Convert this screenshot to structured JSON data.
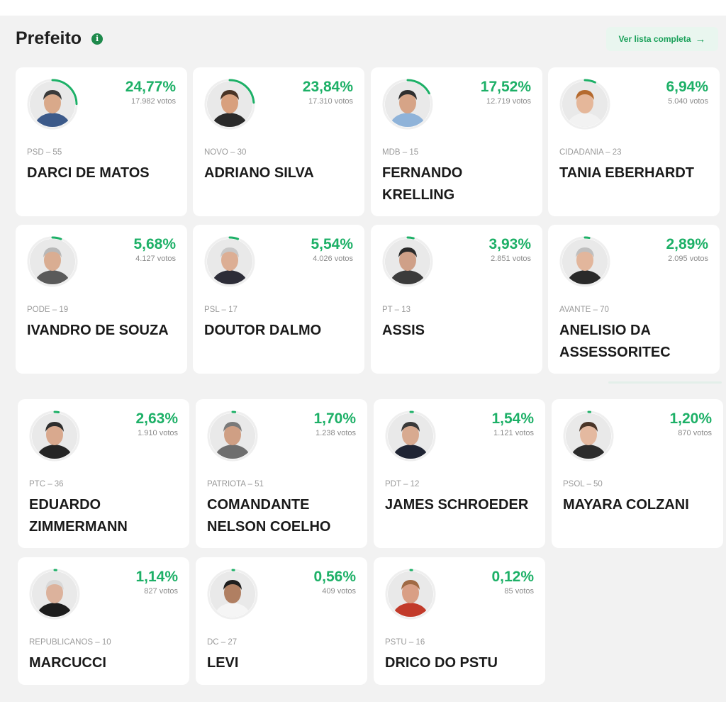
{
  "header": {
    "title": "Prefeito",
    "info_icon": "info-icon"
  },
  "ver_lista": {
    "label": "Ver lista completa",
    "icon": "arrow-right-icon",
    "arrow": "→"
  },
  "colors": {
    "accent": "#1db067",
    "ring": "#1db067",
    "panel": "#f2f2f2"
  },
  "candidates": [
    {
      "party": "PSD – 55",
      "name": "DARCI DE MATOS",
      "pct": "24,77%",
      "pct_value": 24.77,
      "votes": "17.982 votos",
      "skin": "#d9a98a",
      "hair": "#3a3a3a",
      "shirt": "#3c5a8a"
    },
    {
      "party": "NOVO – 30",
      "name": "ADRIANO SILVA",
      "pct": "23,84%",
      "pct_value": 23.84,
      "votes": "17.310 votos",
      "skin": "#d8a07e",
      "hair": "#4a3426",
      "shirt": "#2a2a2a"
    },
    {
      "party": "MDB – 15",
      "name": "FERNANDO KRELLING",
      "pct": "17,52%",
      "pct_value": 17.52,
      "votes": "12.719 votos",
      "skin": "#d6a487",
      "hair": "#2f2f2f",
      "shirt": "#8fb3d9"
    },
    {
      "party": "CIDADANIA – 23",
      "name": "TANIA EBERHARDT",
      "pct": "6,94%",
      "pct_value": 6.94,
      "votes": "5.040 votos",
      "skin": "#e5b79a",
      "hair": "#b56a2e",
      "shirt": "#f2f2f2"
    },
    {
      "party": "PODE – 19",
      "name": "IVANDRO DE SOUZA",
      "pct": "5,68%",
      "pct_value": 5.68,
      "votes": "4.127 votos",
      "skin": "#d9ad92",
      "hair": "#b8b8b8",
      "shirt": "#5a5a5a"
    },
    {
      "party": "PSL – 17",
      "name": "DOUTOR DALMO",
      "pct": "5,54%",
      "pct_value": 5.54,
      "votes": "4.026 votos",
      "skin": "#dcae94",
      "hair": "#c8c8c8",
      "shirt": "#2d2d38"
    },
    {
      "party": "PT – 13",
      "name": "ASSIS",
      "pct": "3,93%",
      "pct_value": 3.93,
      "votes": "2.851 votos",
      "skin": "#cfa088",
      "hair": "#2b2b2b",
      "shirt": "#3b3b3b"
    },
    {
      "party": "AVANTE – 70",
      "name": "ANELISIO DA ASSESSORITEC",
      "pct": "2,89%",
      "pct_value": 2.89,
      "votes": "2.095 votos",
      "skin": "#e2b69c",
      "hair": "#bfbfbf",
      "shirt": "#2a2a2a"
    },
    {
      "party": "PTC – 36",
      "name": "EDUARDO ZIMMERMANN",
      "pct": "2,63%",
      "pct_value": 2.63,
      "votes": "1.910 votos",
      "skin": "#d9a98e",
      "hair": "#2e2e2e",
      "shirt": "#252525"
    },
    {
      "party": "PATRIOTA – 51",
      "name": "COMANDANTE NELSON COELHO",
      "pct": "1,70%",
      "pct_value": 1.7,
      "votes": "1.238 votos",
      "skin": "#cf9f84",
      "hair": "#7a7a7a",
      "shirt": "#6e6e6e"
    },
    {
      "party": "PDT – 12",
      "name": "JAMES SCHROEDER",
      "pct": "1,54%",
      "pct_value": 1.54,
      "votes": "1.121 votos",
      "skin": "#d8aa90",
      "hair": "#3a3a3a",
      "shirt": "#1f2433"
    },
    {
      "party": "PSOL – 50",
      "name": "MAYARA COLZANI",
      "pct": "1,20%",
      "pct_value": 1.2,
      "votes": "870 votos",
      "skin": "#e4b9a0",
      "hair": "#4a3528",
      "shirt": "#2c2c2c"
    },
    {
      "party": "REPUBLICANOS – 10",
      "name": "MARCUCCI",
      "pct": "1,14%",
      "pct_value": 1.14,
      "votes": "827 votos",
      "skin": "#dcb29c",
      "hair": "#d9d9d9",
      "shirt": "#1d1d1d"
    },
    {
      "party": "DC – 27",
      "name": "LEVI",
      "pct": "0,56%",
      "pct_value": 0.56,
      "votes": "409 votos",
      "skin": "#b07f62",
      "hair": "#1e1e1e",
      "shirt": "#f5f5f5"
    },
    {
      "party": "PSTU – 16",
      "name": "DRICO DO PSTU",
      "pct": "0,12%",
      "pct_value": 0.12,
      "votes": "85 votos",
      "skin": "#d99f85",
      "hair": "#a06a44",
      "shirt": "#c23a2a"
    }
  ]
}
